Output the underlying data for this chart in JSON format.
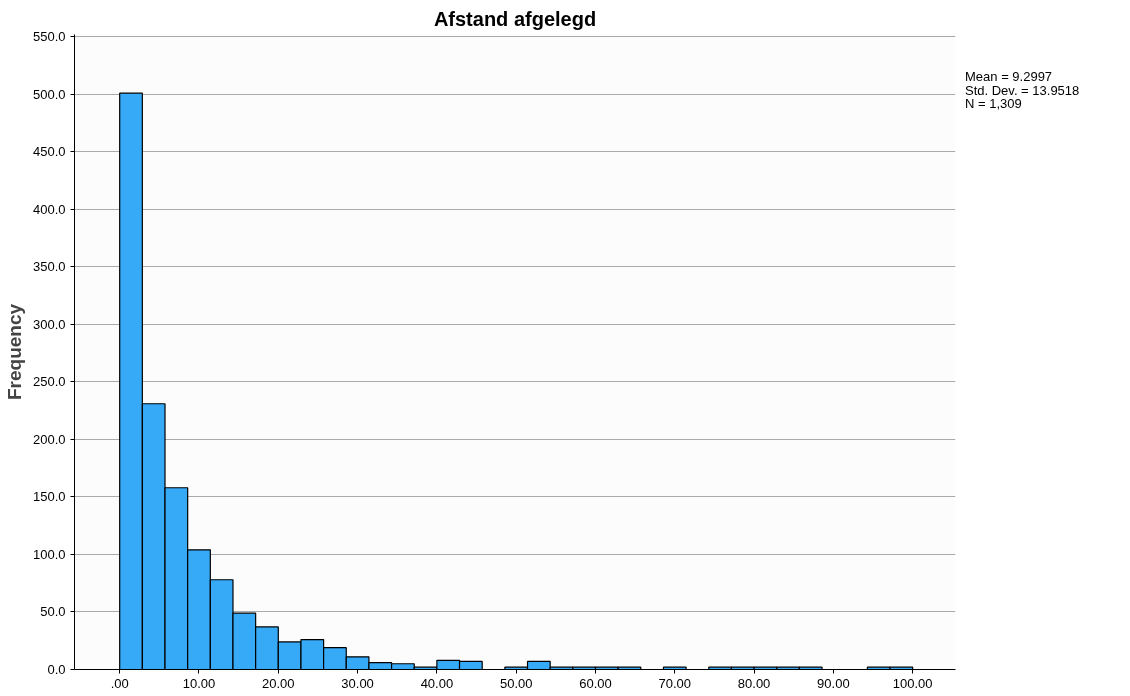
{
  "chart_data": {
    "type": "histogram",
    "title": "Afstand afgelegd",
    "ylabel": "Frequency",
    "bins": [
      0,
      2.857,
      5.714,
      8.571,
      11.429,
      14.286,
      17.143,
      20,
      22.857,
      25.714,
      28.571,
      31.429,
      34.286,
      37.143,
      40,
      42.857,
      45.714,
      48.571,
      51.429,
      54.286,
      57.143,
      60,
      62.857,
      65.714,
      68.571,
      71.429,
      74.286,
      77.143,
      80,
      82.857,
      85.714,
      88.571,
      91.429,
      94.286,
      97.143,
      100
    ],
    "values": [
      501,
      231,
      158,
      104,
      78,
      49,
      37,
      24,
      26,
      19,
      11,
      6,
      5,
      2,
      8,
      7,
      null,
      2,
      7,
      2,
      2,
      2,
      2,
      null,
      2,
      null,
      2,
      2,
      2,
      2,
      2,
      0,
      0,
      2,
      2
    ],
    "color": "#36aaf7",
    "xlim": [
      -5.7,
      105.4
    ],
    "ylim": [
      0,
      552
    ],
    "xticks": [
      {
        "value": 0,
        "label": ".00"
      },
      {
        "value": 10,
        "label": "10.00"
      },
      {
        "value": 20,
        "label": "20.00"
      },
      {
        "value": 30,
        "label": "30.00"
      },
      {
        "value": 40,
        "label": "40.00"
      },
      {
        "value": 50,
        "label": "50.00"
      },
      {
        "value": 60,
        "label": "60.00"
      },
      {
        "value": 70,
        "label": "70.00"
      },
      {
        "value": 80,
        "label": "80.00"
      },
      {
        "value": 90,
        "label": "90.00"
      },
      {
        "value": 100,
        "label": "100.00"
      }
    ],
    "yticks": [
      {
        "value": 0,
        "label": "0.0"
      },
      {
        "value": 50,
        "label": "50.0"
      },
      {
        "value": 100,
        "label": "100.0"
      },
      {
        "value": 150,
        "label": "150.0"
      },
      {
        "value": 200,
        "label": "200.0"
      },
      {
        "value": 250,
        "label": "250.0"
      },
      {
        "value": 300,
        "label": "300.0"
      },
      {
        "value": 350,
        "label": "350.0"
      },
      {
        "value": 400,
        "label": "400.0"
      },
      {
        "value": 450,
        "label": "450.0"
      },
      {
        "value": 500,
        "label": "500.0"
      },
      {
        "value": 550,
        "label": "550.0"
      }
    ],
    "grid": "y",
    "annotations": [
      "Mean = 9.2997",
      "Std. Dev. = 13.9518",
      "N = 1,309"
    ]
  }
}
